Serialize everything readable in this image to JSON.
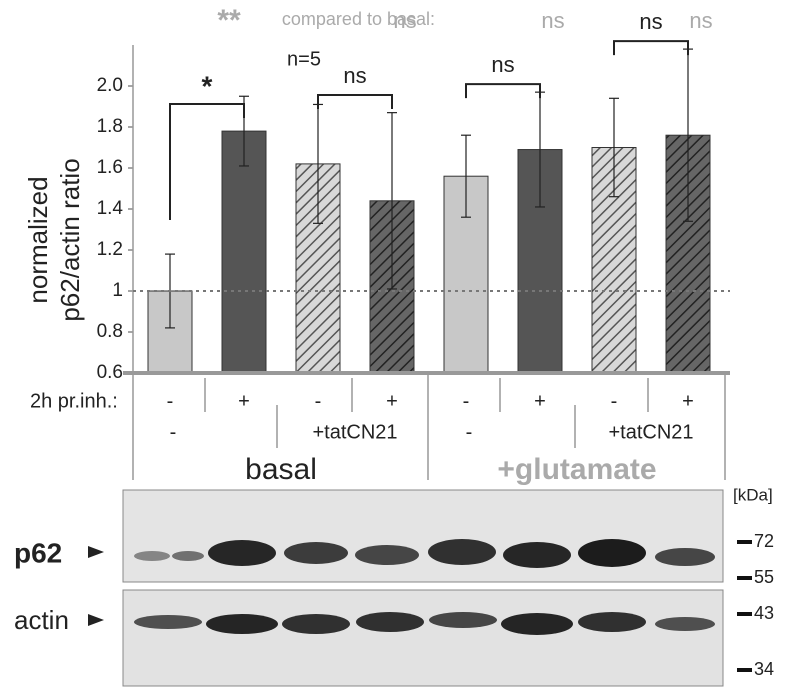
{
  "chart_data": {
    "type": "bar",
    "ylabel": [
      "normalized",
      "p62/actin ratio"
    ],
    "ylim": [
      0.6,
      2.2
    ],
    "yticks": [
      0.6,
      0.8,
      1,
      1.2,
      1.4,
      1.6,
      1.8,
      {
        "value": 2,
        "label": "2.0"
      }
    ],
    "values": [
      1.0,
      1.78,
      1.62,
      1.44,
      1.56,
      1.69,
      1.7,
      1.76
    ],
    "errors": [
      0.18,
      0.17,
      0.29,
      0.43,
      0.2,
      0.28,
      0.24,
      0.42
    ],
    "colors": [
      "#c8c8c8",
      "#555555",
      "#c8c8c8",
      "#555555",
      "#c8c8c8",
      "#555555",
      "#c8c8c8",
      "#555555"
    ],
    "hatched": [
      false,
      false,
      true,
      true,
      false,
      false,
      true,
      true
    ],
    "reference_line": 1,
    "annotation": "n=5",
    "comparison_title": "compared to basal:",
    "comparison_labels": [
      "**",
      "ns",
      "ns",
      "ns"
    ],
    "brackets": [
      "*",
      "ns",
      "ns",
      "ns"
    ],
    "row_label": "2h pr.inh.:",
    "inhibitor": [
      "-",
      "+",
      "-",
      "+",
      "-",
      "+",
      "-",
      "+"
    ],
    "treatment": [
      "-",
      "+tatCN21",
      "-",
      "+tatCN21"
    ],
    "conditions": [
      "basal",
      "+glutamate"
    ]
  },
  "blot": {
    "rows": [
      "p62",
      "actin"
    ],
    "unit": "[kDa]",
    "markers": [
      "72",
      "55",
      "43",
      "34"
    ]
  }
}
